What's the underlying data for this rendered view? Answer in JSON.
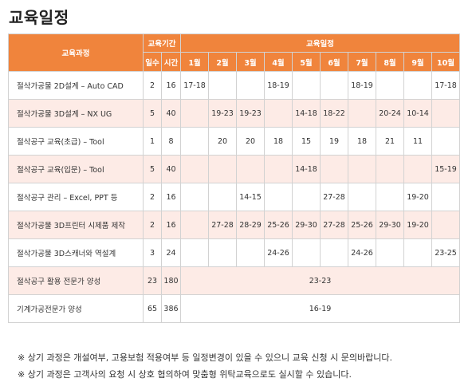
{
  "title": "교육일정",
  "header": {
    "course_label": "교육과정",
    "period_label": "교육기간",
    "schedule_label": "교육일정",
    "days_label": "일수",
    "hours_label": "시간",
    "months": [
      "1월",
      "2월",
      "3월",
      "4월",
      "5월",
      "6월",
      "7월",
      "8월",
      "9월",
      "10월"
    ]
  },
  "rows": [
    {
      "course": "절삭가공물 2D설계 – Auto CAD",
      "days": "2",
      "hours": "16",
      "months": [
        "17-18",
        "",
        "",
        "18-19",
        "",
        "",
        "18-19",
        "",
        "",
        "17-18"
      ]
    },
    {
      "course": "절삭가공물 3D설계 – NX UG",
      "days": "5",
      "hours": "40",
      "months": [
        "",
        "19-23",
        "19-23",
        "",
        "14-18",
        "18-22",
        "",
        "20-24",
        "10-14",
        ""
      ]
    },
    {
      "course": "절삭공구 교육(초급) – Tool",
      "days": "1",
      "hours": "8",
      "months": [
        "",
        "20",
        "20",
        "18",
        "15",
        "19",
        "18",
        "21",
        "11",
        ""
      ]
    },
    {
      "course": "절삭공구 교육(입문) – Tool",
      "days": "5",
      "hours": "40",
      "months": [
        "",
        "",
        "",
        "",
        "14-18",
        "",
        "",
        "",
        "",
        "15-19"
      ]
    },
    {
      "course": "절삭공구 관리 – Excel, PPT 등",
      "days": "2",
      "hours": "16",
      "months": [
        "",
        "",
        "14-15",
        "",
        "",
        "27-28",
        "",
        "",
        "19-20",
        ""
      ]
    },
    {
      "course": "절삭가공물 3D프린터 시제품 제작",
      "days": "2",
      "hours": "16",
      "months": [
        "",
        "27-28",
        "28-29",
        "25-26",
        "29-30",
        "27-28",
        "25-26",
        "29-30",
        "19-20",
        ""
      ]
    },
    {
      "course": "절삭가공물 3D스캐너와 역설계",
      "days": "3",
      "hours": "24",
      "months": [
        "",
        "",
        "",
        "24-26",
        "",
        "",
        "24-26",
        "",
        "",
        "23-25"
      ]
    },
    {
      "course": "절삭공구 활용 전문가 양성",
      "days": "23",
      "hours": "180",
      "span": "23-23"
    },
    {
      "course": "기계가공전문가 양성",
      "days": "65",
      "hours": "386",
      "span": "16-19"
    }
  ],
  "notes": [
    "※ 상기 과정은 개설여부, 고용보험 적용여부 등 일정변경이 있을 수 있으니 교육 신청 시 문의바랍니다.",
    "※ 상기 과정은 고객사의 요청 시 상호 협의하여 맞춤형 위탁교육으로도 실시할 수 있습니다."
  ]
}
